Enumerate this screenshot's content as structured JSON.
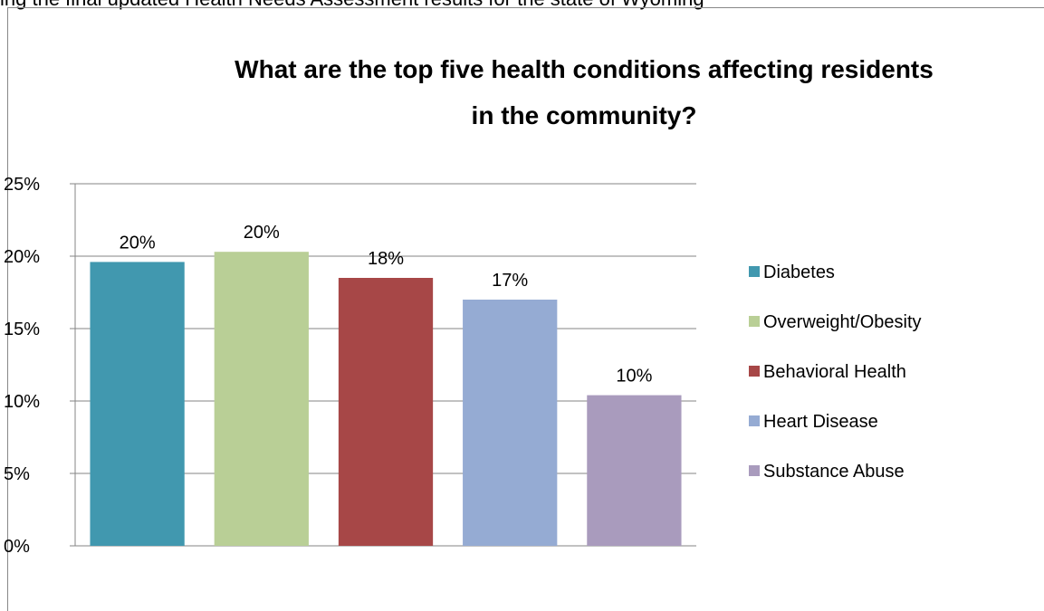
{
  "page": {
    "clipped_top_text": "ing the final updated Health Needs Assessment results for the state of Wyoming"
  },
  "chart_data": {
    "type": "bar",
    "title": "What are the top five health conditions affecting residents in the community?",
    "title_lines": [
      "What are the top five health conditions affecting residents",
      "in the community?"
    ],
    "categories": [
      "Diabetes",
      "Overweight/Obesity",
      "Behavioral Health",
      "Heart Disease",
      "Substance Abuse"
    ],
    "values": [
      19.6,
      20.3,
      18.5,
      17.0,
      10.4
    ],
    "data_labels": [
      "20%",
      "20%",
      "18%",
      "17%",
      "10%"
    ],
    "colors": [
      "#4198AF",
      "#B9CF96",
      "#A74747",
      "#95ABD3",
      "#A99BBD"
    ],
    "yticks": [
      "0%",
      "5%",
      "10%",
      "15%",
      "20%",
      "25%"
    ],
    "ylim": [
      0,
      25
    ],
    "xlabel": "",
    "ylabel": "",
    "grid": true,
    "legend": {
      "position": "right",
      "entries": [
        "Diabetes",
        "Overweight/Obesity",
        "Behavioral Health",
        "Heart Disease",
        "Substance Abuse"
      ]
    }
  }
}
